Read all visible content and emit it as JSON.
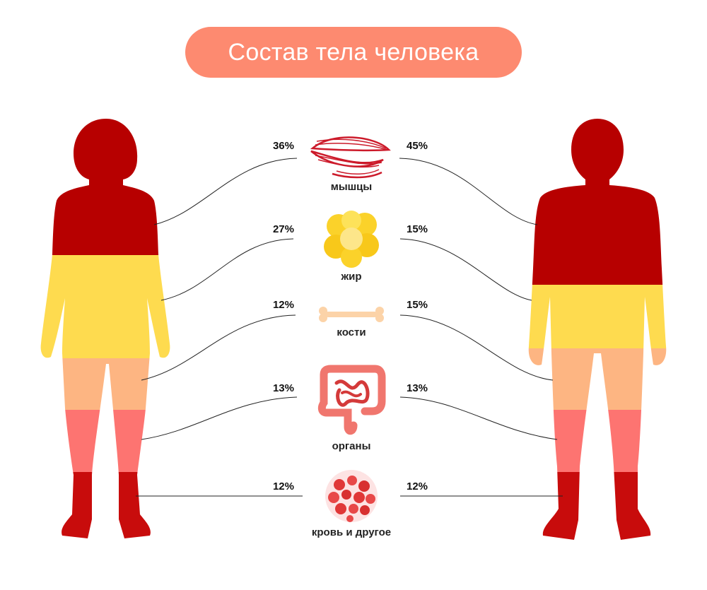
{
  "title": "Состав тела человека",
  "colors": {
    "title_bg": "#fd8a70",
    "muscles": "#b70000",
    "fat": "#fedb4f",
    "bones": "#fdb582",
    "organs": "#fd7471",
    "blood": "#c80c0c"
  },
  "components": [
    {
      "label": "мышцы",
      "female": "36%",
      "male": "45%",
      "icon": "muscle-icon"
    },
    {
      "label": "жир",
      "female": "27%",
      "male": "15%",
      "icon": "fat-cell-icon"
    },
    {
      "label": "кости",
      "female": "12%",
      "male": "15%",
      "icon": "bone-icon"
    },
    {
      "label": "органы",
      "female": "13%",
      "male": "13%",
      "icon": "intestine-icon"
    },
    {
      "label": "кровь и другое",
      "female": "12%",
      "male": "12%",
      "icon": "blood-cells-icon"
    }
  ]
}
